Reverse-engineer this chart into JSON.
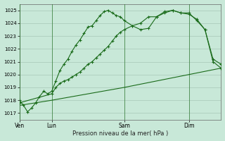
{
  "background_color": "#c8e8d8",
  "plot_bg_color": "#c8e8d8",
  "grid_color": "#a8c8b8",
  "line_color": "#1a6b1a",
  "xlabel": "Pression niveau de la mer( hPa )",
  "ylim": [
    1016.5,
    1025.5
  ],
  "yticks": [
    1017,
    1018,
    1019,
    1020,
    1021,
    1022,
    1023,
    1024,
    1025
  ],
  "day_labels": [
    "Ven",
    "Lun",
    "Sam",
    "Dim"
  ],
  "day_positions": [
    0,
    16,
    52,
    84
  ],
  "xlim": [
    0,
    100
  ],
  "line1_x": [
    0,
    2,
    4,
    6,
    8,
    10,
    12,
    14,
    16,
    18,
    20,
    22,
    24,
    26,
    28,
    30,
    32,
    34,
    36,
    38,
    40,
    42,
    44,
    46,
    48,
    50,
    52,
    56,
    60,
    64,
    68,
    72,
    76,
    80,
    84,
    88,
    92,
    96,
    100
  ],
  "line1_y": [
    1018.0,
    1017.6,
    1017.1,
    1017.4,
    1017.8,
    1018.3,
    1018.7,
    1018.5,
    1018.7,
    1019.5,
    1020.3,
    1020.8,
    1021.2,
    1021.8,
    1022.3,
    1022.7,
    1023.2,
    1023.7,
    1023.8,
    1024.2,
    1024.6,
    1024.9,
    1025.0,
    1024.8,
    1024.6,
    1024.5,
    1024.2,
    1023.8,
    1023.5,
    1023.6,
    1024.5,
    1024.9,
    1025.0,
    1024.8,
    1024.8,
    1024.2,
    1023.5,
    1021.2,
    1020.8
  ],
  "line2_x": [
    0,
    16,
    18,
    20,
    22,
    24,
    26,
    28,
    30,
    32,
    34,
    36,
    38,
    40,
    42,
    44,
    46,
    48,
    50,
    52,
    56,
    60,
    64,
    68,
    72,
    76,
    80,
    84,
    88,
    92,
    96,
    100
  ],
  "line2_y": [
    1017.8,
    1018.5,
    1019.0,
    1019.3,
    1019.5,
    1019.6,
    1019.8,
    1020.0,
    1020.2,
    1020.5,
    1020.8,
    1021.0,
    1021.3,
    1021.6,
    1021.9,
    1022.2,
    1022.6,
    1023.0,
    1023.3,
    1023.5,
    1023.8,
    1024.0,
    1024.5,
    1024.5,
    1024.8,
    1025.0,
    1024.8,
    1024.7,
    1024.3,
    1023.5,
    1021.0,
    1020.5
  ],
  "line3_x": [
    0,
    16,
    52,
    84,
    100
  ],
  "line3_y": [
    1017.6,
    1018.0,
    1019.0,
    1020.0,
    1020.5
  ]
}
